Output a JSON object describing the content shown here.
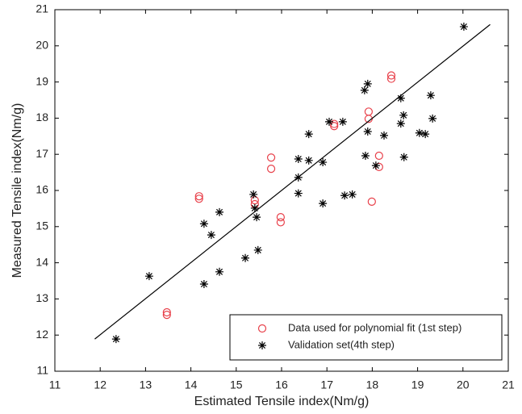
{
  "chart_data": {
    "type": "scatter",
    "xlabel": "Estimated Tensile index(Nm/g)",
    "ylabel": "Measured Tensile index(Nm/g)",
    "xlim": [
      11,
      21
    ],
    "ylim": [
      11,
      21
    ],
    "xticks": [
      11,
      12,
      13,
      14,
      15,
      16,
      17,
      18,
      19,
      20,
      21
    ],
    "yticks": [
      11,
      12,
      13,
      14,
      15,
      16,
      17,
      18,
      19,
      20,
      21
    ],
    "legend": "lower right",
    "series": [
      {
        "name": "Data used for polynomial fit (1st step)",
        "color": "#e8404a",
        "marker": "circle",
        "x": [
          13.47,
          13.47,
          14.18,
          14.18,
          15.41,
          15.41,
          15.77,
          15.77,
          15.98,
          15.98,
          17.16,
          17.16,
          17.92,
          17.92,
          17.99,
          18.15,
          18.15,
          18.42,
          18.42
        ],
        "y": [
          12.63,
          12.56,
          15.84,
          15.77,
          15.73,
          15.62,
          16.91,
          16.6,
          15.26,
          15.12,
          17.84,
          17.78,
          18.18,
          17.98,
          15.69,
          16.96,
          16.65,
          19.18,
          19.09
        ]
      },
      {
        "name": "Validation set(4th step)",
        "color": "#000000",
        "marker": "star",
        "x": [
          12.35,
          13.08,
          14.29,
          14.29,
          14.45,
          14.63,
          14.63,
          15.2,
          15.38,
          15.41,
          15.45,
          15.48,
          16.37,
          16.37,
          16.37,
          16.6,
          16.6,
          16.91,
          16.91,
          17.05,
          17.35,
          17.39,
          17.56,
          17.83,
          17.9,
          17.9,
          18.08,
          18.26,
          17.85,
          18.63,
          18.63,
          18.69,
          18.7,
          19.04,
          19.17,
          19.29,
          19.33,
          20.02
        ],
        "y": [
          11.89,
          13.63,
          15.08,
          13.41,
          14.77,
          15.4,
          13.75,
          14.13,
          15.89,
          15.51,
          15.26,
          14.35,
          16.87,
          16.36,
          15.92,
          17.56,
          16.83,
          16.78,
          15.64,
          17.9,
          17.9,
          15.86,
          15.89,
          18.77,
          18.95,
          17.63,
          16.69,
          17.52,
          16.96,
          18.55,
          17.85,
          18.08,
          16.92,
          17.59,
          17.56,
          18.63,
          17.99,
          20.53
        ]
      },
      {
        "color": "#000000",
        "marker": "line",
        "x": [
          11.88,
          20.6
        ],
        "y": [
          11.89,
          20.59
        ]
      }
    ]
  }
}
